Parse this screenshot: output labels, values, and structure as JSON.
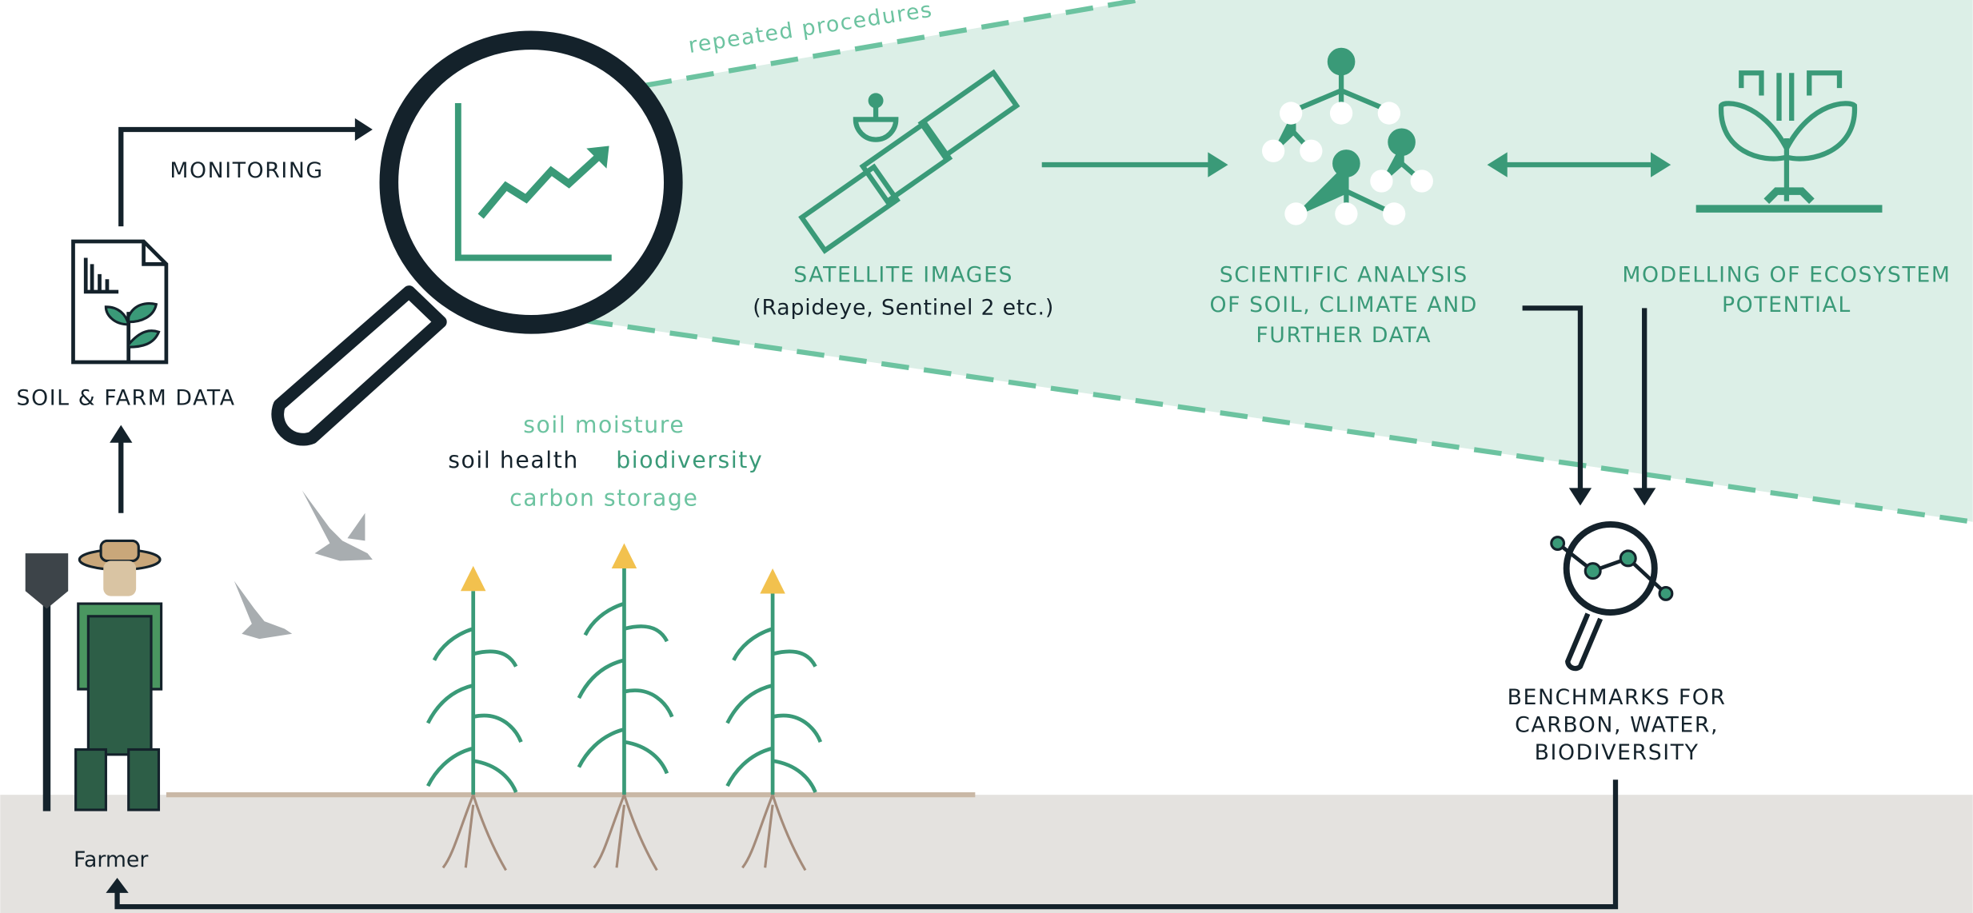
{
  "repeated_label": "repeated procedures",
  "monitoring": "MONITORING",
  "soil_farm_data": "SOIL & FARM DATA",
  "satellite": {
    "title": "SATELLITE IMAGES",
    "subtitle": "(Rapideye, Sentinel 2 etc.)"
  },
  "analysis": {
    "lines": [
      "SCIENTIFIC ANALYSIS",
      "OF SOIL, CLIMATE AND",
      "FURTHER DATA"
    ]
  },
  "modelling": {
    "lines": [
      "MODELLING OF ECOSYSTEM",
      "POTENTIAL"
    ]
  },
  "indicators": {
    "soil_moisture": "soil moisture",
    "soil_health": "soil health",
    "biodiversity": "biodiversity",
    "carbon_storage": "carbon storage"
  },
  "benchmarks": {
    "lines": [
      "BENCHMARKS FOR",
      "CARBON, WATER,",
      "BIODIVERSITY"
    ]
  },
  "farmer": "Farmer"
}
